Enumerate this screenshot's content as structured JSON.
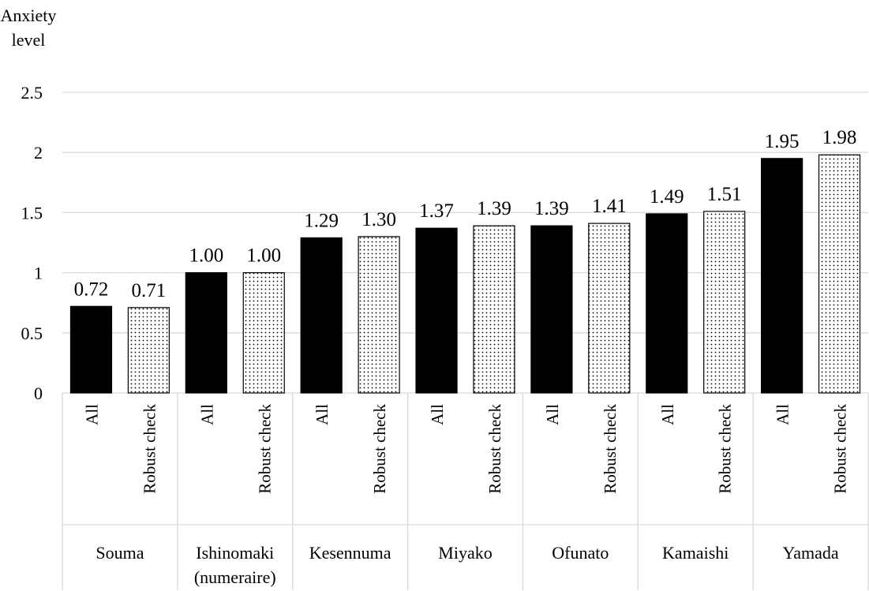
{
  "chart_data": {
    "type": "bar",
    "ylabel": [
      "Anxiety",
      "level"
    ],
    "ylim": [
      0,
      2.5
    ],
    "yticks": [
      "0",
      "0.5",
      "1",
      "1.5",
      "2",
      "2.5"
    ],
    "ytick_values": [
      0,
      0.5,
      1,
      1.5,
      2,
      2.5
    ],
    "grid": true,
    "legend": "none",
    "groups": [
      {
        "name": [
          "Souma"
        ],
        "bars": [
          {
            "category": "All",
            "value": 0.72,
            "label": "0.72"
          },
          {
            "category": "Robust check",
            "value": 0.71,
            "label": "0.71"
          }
        ]
      },
      {
        "name": [
          "Ishinomaki",
          "(numeraire)"
        ],
        "bars": [
          {
            "category": "All",
            "value": 1.0,
            "label": "1.00"
          },
          {
            "category": "Robust check",
            "value": 1.0,
            "label": "1.00"
          }
        ]
      },
      {
        "name": [
          "Kesennuma"
        ],
        "bars": [
          {
            "category": "All",
            "value": 1.29,
            "label": "1.29"
          },
          {
            "category": "Robust check",
            "value": 1.3,
            "label": "1.30"
          }
        ]
      },
      {
        "name": [
          "Miyako"
        ],
        "bars": [
          {
            "category": "All",
            "value": 1.37,
            "label": "1.37"
          },
          {
            "category": "Robust check",
            "value": 1.39,
            "label": "1.39"
          }
        ]
      },
      {
        "name": [
          "Ofunato"
        ],
        "bars": [
          {
            "category": "All",
            "value": 1.39,
            "label": "1.39"
          },
          {
            "category": "Robust check",
            "value": 1.41,
            "label": "1.41"
          }
        ]
      },
      {
        "name": [
          "Kamaishi"
        ],
        "bars": [
          {
            "category": "All",
            "value": 1.49,
            "label": "1.49"
          },
          {
            "category": "Robust check",
            "value": 1.51,
            "label": "1.51"
          }
        ]
      },
      {
        "name": [
          "Yamada"
        ],
        "bars": [
          {
            "category": "All",
            "value": 1.95,
            "label": "1.95"
          },
          {
            "category": "Robust check",
            "value": 1.98,
            "label": "1.98"
          }
        ]
      }
    ],
    "colors": {
      "All": "#000000",
      "Robust check": "dotted-white"
    }
  }
}
